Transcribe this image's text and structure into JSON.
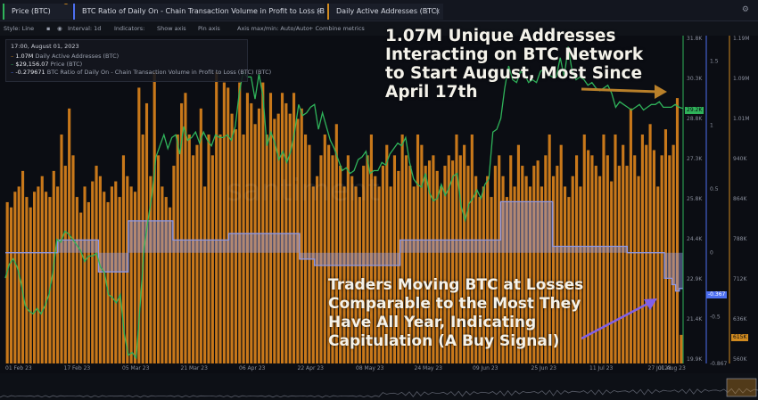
{
  "tabs": [
    {
      "label": "Price (BTC)",
      "color": "#2fb35a"
    },
    {
      "label": "BTC Ratio of Daily On - Chain Transaction Volume in Profit to Loss (BTC) (BTC)",
      "color": "#4d6ff0"
    },
    {
      "label": "Daily Active Addresses (BTC)",
      "color": "#d08a1f"
    }
  ],
  "toolbar": {
    "style": "Style: Line",
    "interval": "Interval: 1d",
    "indicators": "Indicators:",
    "show_axis": "Show axis",
    "pin_axis": "Pin axis",
    "axis_max_min": "Axis max/min: Auto/Auto",
    "combine": "+ Combine metrics"
  },
  "legend": {
    "date": "17:00, August 01, 2023",
    "items": [
      {
        "value": "1.07M",
        "label": "Daily Active Addresses (BTC)",
        "color": "#d08a1f"
      },
      {
        "value": "$29,156.07",
        "label": "Price (BTC)",
        "color": "#2fb35a"
      },
      {
        "value": "-0.279671",
        "label": "BTC Ratio of Daily On - Chain Transaction Volume in Profit to Loss (BTC) (BTC)",
        "color": "#4d6ff0"
      }
    ]
  },
  "annotations": {
    "top": "1.07M Unique Addresses Interacting on BTC Network to Start August, Most Since April 17th",
    "bottom": "Traders Moving BTC at Losses Comparable to the Most They Have All Year, Indicating Capitulation (A Buy Signal)"
  },
  "watermark": "santiment",
  "chart_data": {
    "type": "bar",
    "x_ticks": [
      "01 Feb 23",
      "17 Feb 23",
      "05 Mar 23",
      "21 Mar 23",
      "06 Apr 23",
      "22 Apr 23",
      "08 May 23",
      "24 May 23",
      "09 Jun 23",
      "25 Jun 23",
      "11 Jul 23",
      "27 Jul 23",
      "01 Aug 23"
    ],
    "price_axis": {
      "ticks": [
        "31.8K",
        "30.3K",
        "28.8K",
        "27.3K",
        "25.8K",
        "24.4K",
        "22.9K",
        "21.4K",
        "19.9K"
      ],
      "min": 19900,
      "max": 31800
    },
    "ratio_axis": {
      "ticks": [
        "1.5",
        "1",
        "0.5",
        "0",
        "-0.5",
        "-0.867"
      ],
      "min": -0.867,
      "max": 1.7
    },
    "daa_axis": {
      "ticks": [
        "1.19M",
        "1.09M",
        "1.01M",
        "940K",
        "864K",
        "788K",
        "712K",
        "636K",
        "560K"
      ],
      "min": 560000,
      "max": 1190000
    },
    "current_price_label": "29.2K",
    "current_ratio_label": "-0.367",
    "current_daa_label": "615K",
    "series": [
      {
        "name": "Daily Active Addresses (BTC)",
        "type": "bar",
        "color": "#c8781a",
        "values": [
          870,
          860,
          890,
          900,
          930,
          880,
          860,
          890,
          900,
          920,
          890,
          880,
          930,
          900,
          1000,
          940,
          1050,
          960,
          880,
          850,
          900,
          870,
          910,
          940,
          920,
          890,
          870,
          900,
          910,
          880,
          960,
          920,
          900,
          890,
          1090,
          1000,
          1060,
          920,
          1120,
          960,
          900,
          880,
          860,
          940,
          1000,
          1060,
          1080,
          1000,
          960,
          980,
          1050,
          900,
          1000,
          960,
          1120,
          1000,
          1100,
          1090,
          1040,
          1010,
          1100,
          1000,
          1080,
          1060,
          1020,
          1050,
          1100,
          1000,
          1080,
          1030,
          1040,
          1080,
          1060,
          1040,
          1080,
          1030,
          1050,
          1000,
          980,
          900,
          920,
          960,
          1000,
          980,
          960,
          1020,
          940,
          900,
          960,
          920,
          900,
          880,
          940,
          960,
          1000,
          920,
          900,
          940,
          980,
          900,
          960,
          930,
          1000,
          960,
          940,
          900,
          1000,
          980,
          940,
          950,
          960,
          930,
          900,
          940,
          960,
          950,
          1000,
          960,
          980,
          940,
          1000,
          920,
          880,
          900,
          920,
          880,
          940,
          960,
          920,
          880,
          960,
          900,
          980,
          940,
          920,
          900,
          940,
          950,
          900,
          960,
          1000,
          920,
          940,
          980,
          900,
          880,
          920,
          960,
          900,
          1000,
          970,
          960,
          940,
          920,
          1000,
          960,
          910,
          1000,
          940,
          980,
          940,
          1050,
          960,
          920,
          1000,
          980,
          1020,
          970,
          900,
          960,
          1010,
          960,
          980,
          1070,
          615
        ]
      },
      {
        "name": "Price (BTC)",
        "type": "line",
        "color": "#2fb35a",
        "values": [
          23000,
          23500,
          23700,
          23400,
          22800,
          22000,
          21800,
          21700,
          21900,
          21700,
          22000,
          22400,
          23200,
          24400,
          24300,
          24700,
          24600,
          24400,
          24200,
          24000,
          23600,
          23800,
          23800,
          23900,
          23400,
          23200,
          22400,
          22300,
          22100,
          22400,
          21000,
          20200,
          20300,
          20100,
          22000,
          24100,
          25100,
          26000,
          27400,
          27800,
          28200,
          27700,
          28100,
          28200,
          27500,
          28500,
          28000,
          28100,
          28300,
          27900,
          28300,
          28000,
          27800,
          28200,
          28100,
          28100,
          28200,
          28000,
          28500,
          29700,
          30500,
          30300,
          30300,
          29500,
          30400,
          29600,
          27800,
          28300,
          27900,
          27300,
          27600,
          27200,
          27600,
          28300,
          29300,
          28900,
          29000,
          29200,
          29300,
          28400,
          29000,
          28500,
          28000,
          27700,
          27300,
          26900,
          27000,
          26800,
          26900,
          27300,
          27400,
          27600,
          26800,
          26900,
          26900,
          27200,
          27100,
          27500,
          27700,
          27900,
          27800,
          28100,
          27200,
          26600,
          26400,
          26300,
          26800,
          26100,
          25800,
          25900,
          26400,
          26000,
          26300,
          26700,
          26800,
          25600,
          25100,
          25700,
          25900,
          26200,
          25900,
          26400,
          26600,
          28300,
          28400,
          28800,
          29900,
          30700,
          30200,
          30100,
          30500,
          30400,
          30100,
          30200,
          30100,
          30500,
          30600,
          30400,
          30300,
          30300,
          31000,
          30300,
          31400,
          30500,
          30200,
          30300,
          30200,
          30000,
          30100,
          29900,
          29800,
          29900,
          30000,
          29700,
          29200,
          29400,
          29300,
          29200,
          29100,
          29200,
          29300,
          29100,
          29200,
          29300,
          29300,
          29400,
          29200,
          29200,
          29200,
          29300,
          29200,
          29156
        ]
      },
      {
        "name": "BTC Ratio of Daily On - Chain Transaction Volume in Profit to Loss (BTC) (BTC)",
        "type": "step",
        "color": "#8b98e8",
        "values": [
          0,
          0,
          0,
          0,
          0,
          0,
          0,
          0,
          0,
          0,
          0,
          0,
          0,
          0,
          0.1,
          0.1,
          0.1,
          0.1,
          0.1,
          0.1,
          0.1,
          0.1,
          0.1,
          0.1,
          0.1,
          -0.15,
          -0.15,
          -0.15,
          -0.15,
          -0.15,
          -0.15,
          -0.15,
          -0.15,
          0.25,
          0.25,
          0.25,
          0.25,
          0.25,
          0.25,
          0.25,
          0.25,
          0.25,
          0.25,
          0.25,
          0.25,
          0.1,
          0.1,
          0.1,
          0.1,
          0.1,
          0.1,
          0.1,
          0.1,
          0.1,
          0.1,
          0.1,
          0.1,
          0.1,
          0.1,
          0.1,
          0.15,
          0.15,
          0.15,
          0.15,
          0.15,
          0.15,
          0.15,
          0.15,
          0.15,
          0.15,
          0.15,
          0.15,
          0.15,
          0.15,
          0.15,
          0.15,
          0.15,
          0.15,
          0.15,
          -0.05,
          -0.05,
          -0.05,
          -0.05,
          -0.1,
          -0.1,
          -0.1,
          -0.1,
          -0.1,
          -0.1,
          -0.1,
          -0.1,
          -0.1,
          -0.1,
          -0.1,
          -0.1,
          -0.1,
          -0.1,
          -0.1,
          -0.1,
          -0.1,
          -0.1,
          -0.1,
          -0.1,
          -0.1,
          -0.1,
          -0.1,
          0.1,
          0.1,
          0.1,
          0.1,
          0.1,
          0.1,
          0.1,
          0.1,
          0.1,
          0.1,
          0.1,
          0.1,
          0.1,
          0.1,
          0.1,
          0.1,
          0.1,
          0.1,
          0.1,
          0.1,
          0.1,
          0.1,
          0.1,
          0.1,
          0.1,
          0.1,
          0.1,
          0.4,
          0.4,
          0.4,
          0.4,
          0.4,
          0.4,
          0.4,
          0.4,
          0.4,
          0.4,
          0.4,
          0.4,
          0.4,
          0.4,
          0.05,
          0.05,
          0.05,
          0.05,
          0.05,
          0.05,
          0.05,
          0.05,
          0.05,
          0.05,
          0.05,
          0.05,
          0.05,
          0.05,
          0.05,
          0.05,
          0.05,
          0.05,
          0.05,
          0.05,
          0,
          0,
          0,
          0,
          0,
          0,
          0,
          0,
          0,
          0,
          -0.2,
          -0.2,
          -0.25,
          -0.3,
          -0.28
        ]
      }
    ]
  }
}
